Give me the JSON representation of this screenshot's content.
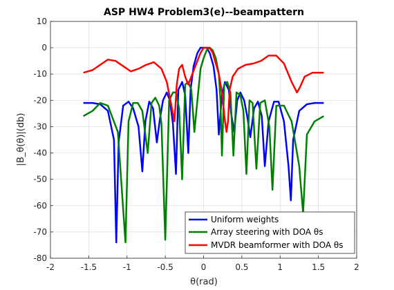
{
  "chart_data": {
    "type": "line",
    "title": "ASP HW4 Problem3(e)--beampattern",
    "xlabel": "θ(rad)",
    "ylabel": "|B_θ(θ)|(db)",
    "xlim": [
      -2,
      2
    ],
    "ylim": [
      -80,
      10
    ],
    "xticks": [
      -2,
      -1.5,
      -1,
      -0.5,
      0,
      0.5,
      1,
      1.5,
      2
    ],
    "xtick_labels": [
      "-2",
      "-1.5",
      "-1",
      "-0.5",
      "0",
      "0.5",
      "1",
      "1.5",
      "2"
    ],
    "yticks": [
      -80,
      -70,
      -60,
      -50,
      -40,
      -30,
      -20,
      -10,
      0,
      10
    ],
    "ytick_labels": [
      "-80",
      "-70",
      "-60",
      "-50",
      "-40",
      "-30",
      "-20",
      "-10",
      "0",
      "10"
    ],
    "grid": true,
    "legend_position": "bottom-right",
    "series": [
      {
        "name": "Uniform weights",
        "color": "#0000ff",
        "x": [
          -1.57,
          -1.45,
          -1.35,
          -1.25,
          -1.17,
          -1.14,
          -1.11,
          -1.05,
          -0.98,
          -0.92,
          -0.85,
          -0.8,
          -0.76,
          -0.71,
          -0.66,
          -0.61,
          -0.57,
          -0.53,
          -0.48,
          -0.44,
          -0.4,
          -0.36,
          -0.33,
          -0.28,
          -0.24,
          -0.2,
          -0.17,
          -0.13,
          -0.08,
          -0.04,
          0.0,
          0.04,
          0.08,
          0.13,
          0.17,
          0.2,
          0.24,
          0.28,
          0.33,
          0.36,
          0.4,
          0.44,
          0.48,
          0.53,
          0.57,
          0.61,
          0.66,
          0.71,
          0.76,
          0.8,
          0.85,
          0.92,
          0.98,
          1.05,
          1.11,
          1.14,
          1.17,
          1.25,
          1.35,
          1.45,
          1.57
        ],
        "y": [
          -21,
          -21,
          -21.5,
          -24,
          -35,
          -74,
          -36,
          -22,
          -20.5,
          -23,
          -30,
          -47,
          -28,
          -20.5,
          -23,
          -36,
          -27,
          -20,
          -17,
          -20,
          -29,
          -48,
          -16,
          -13,
          -18,
          -40,
          -16,
          -7,
          -2,
          0,
          0,
          0,
          -2,
          -7,
          -16,
          -33,
          -18,
          -13,
          -16,
          -25,
          -32,
          -20,
          -17,
          -20,
          -26,
          -34,
          -23,
          -20.5,
          -26,
          -45,
          -28,
          -20.5,
          -20.5,
          -28,
          -45,
          -58,
          -35,
          -24,
          -21.5,
          -21,
          -21
        ]
      },
      {
        "name": "Array steering with DOA θs",
        "color": "#008000",
        "x": [
          -1.57,
          -1.45,
          -1.35,
          -1.25,
          -1.12,
          -1.02,
          -0.98,
          -0.92,
          -0.86,
          -0.8,
          -0.73,
          -0.68,
          -0.63,
          -0.58,
          -0.55,
          -0.5,
          -0.45,
          -0.4,
          -0.36,
          -0.32,
          -0.28,
          -0.24,
          -0.2,
          -0.16,
          -0.12,
          -0.08,
          -0.04,
          0.0,
          0.04,
          0.08,
          0.12,
          0.16,
          0.2,
          0.22,
          0.24,
          0.27,
          0.31,
          0.35,
          0.39,
          0.43,
          0.48,
          0.52,
          0.56,
          0.6,
          0.64,
          0.69,
          0.74,
          0.8,
          0.86,
          0.9,
          0.95,
          1.05,
          1.15,
          1.25,
          1.3,
          1.35,
          1.45,
          1.57
        ],
        "y": [
          -26,
          -24,
          -21,
          -22,
          -32,
          -74,
          -28,
          -21,
          -21,
          -24,
          -40,
          -21,
          -19,
          -22,
          -29,
          -73,
          -20,
          -17,
          -17,
          -23,
          -50,
          -14,
          -13,
          -16,
          -32,
          -20,
          -8,
          -4,
          -1,
          0,
          -1,
          -4,
          -10,
          -20,
          -41,
          -14,
          -13,
          -17,
          -41,
          -17,
          -18,
          -24,
          -48,
          -20,
          -21,
          -46,
          -21,
          -20,
          -30,
          -54,
          -22,
          -22,
          -28,
          -45,
          -63,
          -33,
          -28,
          -26
        ]
      },
      {
        "name": "MVDR beamformer with DOA θs",
        "color": "#ff0000",
        "x": [
          -1.57,
          -1.45,
          -1.35,
          -1.25,
          -1.15,
          -1.05,
          -0.95,
          -0.85,
          -0.75,
          -0.65,
          -0.55,
          -0.48,
          -0.42,
          -0.38,
          -0.35,
          -0.32,
          -0.28,
          -0.24,
          -0.2,
          -0.16,
          -0.12,
          -0.08,
          -0.04,
          0.0,
          0.04,
          0.08,
          0.12,
          0.16,
          0.2,
          0.24,
          0.28,
          0.3,
          0.32,
          0.34,
          0.38,
          0.45,
          0.55,
          0.65,
          0.75,
          0.85,
          0.95,
          1.05,
          1.15,
          1.22,
          1.26,
          1.32,
          1.42,
          1.57
        ],
        "y": [
          -9.5,
          -8.5,
          -6.5,
          -4.5,
          -5,
          -7,
          -9,
          -8,
          -6.5,
          -5.5,
          -8,
          -13,
          -22,
          -28,
          -14,
          -8,
          -6.5,
          -11,
          -14,
          -11,
          -8,
          -5,
          -2,
          0,
          0,
          0,
          -2,
          -6,
          -10,
          -17,
          -28,
          -32,
          -28,
          -16,
          -11,
          -8,
          -6.5,
          -6,
          -5,
          -3,
          -3,
          -6,
          -13,
          -17,
          -15,
          -11,
          -9.5,
          -9.5
        ]
      }
    ],
    "legend": [
      "Uniform weights",
      "Array steering with DOA θs",
      "MVDR beamformer with DOA θs"
    ]
  }
}
